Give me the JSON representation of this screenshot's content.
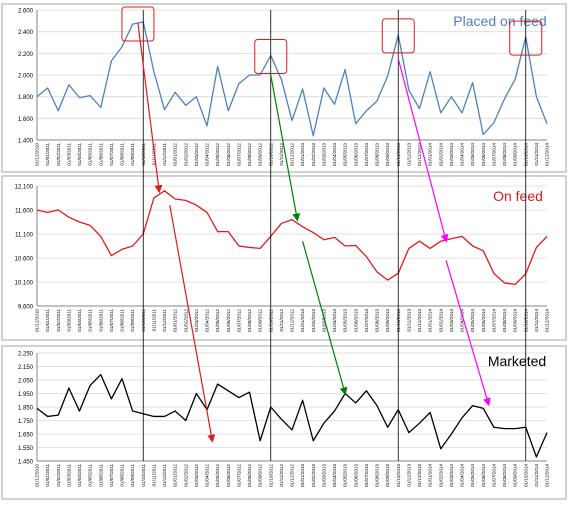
{
  "chart_data": [
    {
      "type": "line",
      "title": "Placed on feed",
      "color": "#4f81bd",
      "ylim": [
        1400,
        2600
      ],
      "yticks": [
        "1.400",
        "1.600",
        "1.800",
        "2.000",
        "2.200",
        "2.400",
        "2.600"
      ],
      "x": [
        "01/12/2010",
        "01/01/2011",
        "01/02/2011",
        "01/03/2011",
        "01/04/2011",
        "01/05/2011",
        "01/06/2011",
        "01/07/2011",
        "01/08/2011",
        "01/09/2011",
        "01/10/2011",
        "01/11/2011",
        "01/12/2011",
        "01/01/2012",
        "01/02/2012",
        "01/03/2012",
        "01/04/2012",
        "01/05/2012",
        "01/06/2012",
        "01/07/2012",
        "01/08/2012",
        "01/09/2012",
        "01/10/2012",
        "01/11/2012",
        "01/12/2012",
        "01/01/2013",
        "01/02/2013",
        "01/03/2013",
        "01/04/2013",
        "01/05/2013",
        "01/06/2013",
        "01/07/2013",
        "01/08/2013",
        "01/09/2013",
        "01/10/2013",
        "01/11/2013",
        "01/12/2013",
        "01/01/2014",
        "01/02/2014",
        "01/03/2014",
        "01/04/2014",
        "01/05/2014",
        "01/06/2014",
        "01/07/2014",
        "01/08/2014",
        "01/09/2014",
        "01/10/2014",
        "01/11/2014",
        "01/12/2014"
      ],
      "values": [
        1800,
        1880,
        1670,
        1910,
        1790,
        1810,
        1700,
        2130,
        2260,
        2470,
        2490,
        2030,
        1680,
        1840,
        1720,
        1800,
        1530,
        2080,
        1670,
        1920,
        2000,
        2000,
        2180,
        1960,
        1580,
        1870,
        1440,
        1880,
        1730,
        2050,
        1550,
        1670,
        1760,
        1990,
        2370,
        1860,
        1690,
        2030,
        1650,
        1800,
        1650,
        1930,
        1450,
        1560,
        1780,
        1960,
        2350,
        1800,
        1550
      ]
    },
    {
      "type": "line",
      "title": "On feed",
      "color": "#e31a1c",
      "ylim": [
        9600,
        12100
      ],
      "yticks": [
        "9.600",
        "10.100",
        "10.600",
        "11.100",
        "11.600",
        "12.100"
      ],
      "x": [
        "01/12/2010",
        "01/01/2011",
        "01/02/2011",
        "01/03/2011",
        "01/04/2011",
        "01/05/2011",
        "01/06/2011",
        "01/07/2011",
        "01/08/2011",
        "01/09/2011",
        "01/10/2011",
        "01/11/2011",
        "01/12/2011",
        "01/01/2012",
        "01/02/2012",
        "01/03/2012",
        "01/04/2012",
        "01/05/2012",
        "01/06/2012",
        "01/07/2012",
        "01/08/2012",
        "01/09/2012",
        "01/10/2012",
        "01/11/2012",
        "01/12/2012",
        "01/01/2013",
        "01/02/2013",
        "01/03/2013",
        "01/04/2013",
        "01/05/2013",
        "01/06/2013",
        "01/07/2013",
        "01/08/2013",
        "01/09/2013",
        "01/10/2013",
        "01/11/2013",
        "01/12/2013",
        "01/01/2014",
        "01/02/2014",
        "01/03/2014",
        "01/04/2014",
        "01/05/2014",
        "01/06/2014",
        "01/07/2014",
        "01/08/2014",
        "01/09/2014",
        "01/10/2014",
        "01/11/2014",
        "01/12/2014"
      ],
      "values": [
        11600,
        11550,
        11600,
        11450,
        11350,
        11280,
        11050,
        10650,
        10780,
        10850,
        11100,
        11850,
        12000,
        11830,
        11800,
        11700,
        11550,
        11150,
        11150,
        10850,
        10820,
        10800,
        11050,
        11320,
        11400,
        11250,
        11130,
        10980,
        11030,
        10850,
        10860,
        10630,
        10310,
        10140,
        10280,
        10800,
        10950,
        10800,
        10950,
        11000,
        11050,
        10850,
        10750,
        10280,
        10080,
        10050,
        10270,
        10820,
        11050
      ]
    },
    {
      "type": "line",
      "title": "Marketed",
      "color": "#000000",
      "ylim": [
        1450,
        2250
      ],
      "yticks": [
        "1.450",
        "1.550",
        "1.650",
        "1.750",
        "1.850",
        "1.950",
        "2.050",
        "2.150",
        "2.250"
      ],
      "x": [
        "01/12/2010",
        "01/01/2011",
        "01/02/2011",
        "01/03/2011",
        "01/04/2011",
        "01/05/2011",
        "01/06/2011",
        "01/07/2011",
        "01/08/2011",
        "01/09/2011",
        "01/10/2011",
        "01/11/2011",
        "01/12/2011",
        "01/01/2012",
        "01/02/2012",
        "01/03/2012",
        "01/04/2012",
        "01/05/2012",
        "01/06/2012",
        "01/07/2012",
        "01/08/2012",
        "01/09/2012",
        "01/10/2012",
        "01/11/2012",
        "01/12/2012",
        "01/01/2013",
        "01/02/2013",
        "01/03/2013",
        "01/04/2013",
        "01/05/2013",
        "01/06/2013",
        "01/07/2013",
        "01/08/2013",
        "01/09/2013",
        "01/10/2013",
        "01/11/2013",
        "01/12/2013",
        "01/01/2014",
        "01/02/2014",
        "01/03/2014",
        "01/04/2014",
        "01/05/2014",
        "01/06/2014",
        "01/07/2014",
        "01/08/2014",
        "01/09/2014",
        "01/10/2014",
        "01/11/2014",
        "01/12/2014"
      ],
      "values": [
        1840,
        1780,
        1790,
        1990,
        1820,
        2010,
        2090,
        1910,
        2060,
        1820,
        1800,
        1780,
        1780,
        1820,
        1750,
        1950,
        1830,
        2020,
        1970,
        1920,
        1960,
        1600,
        1850,
        1760,
        1680,
        1900,
        1600,
        1730,
        1820,
        1950,
        1880,
        1970,
        1860,
        1700,
        1830,
        1660,
        1730,
        1810,
        1540,
        1650,
        1770,
        1860,
        1840,
        1700,
        1690,
        1690,
        1700,
        1480,
        1660
      ]
    }
  ]
}
